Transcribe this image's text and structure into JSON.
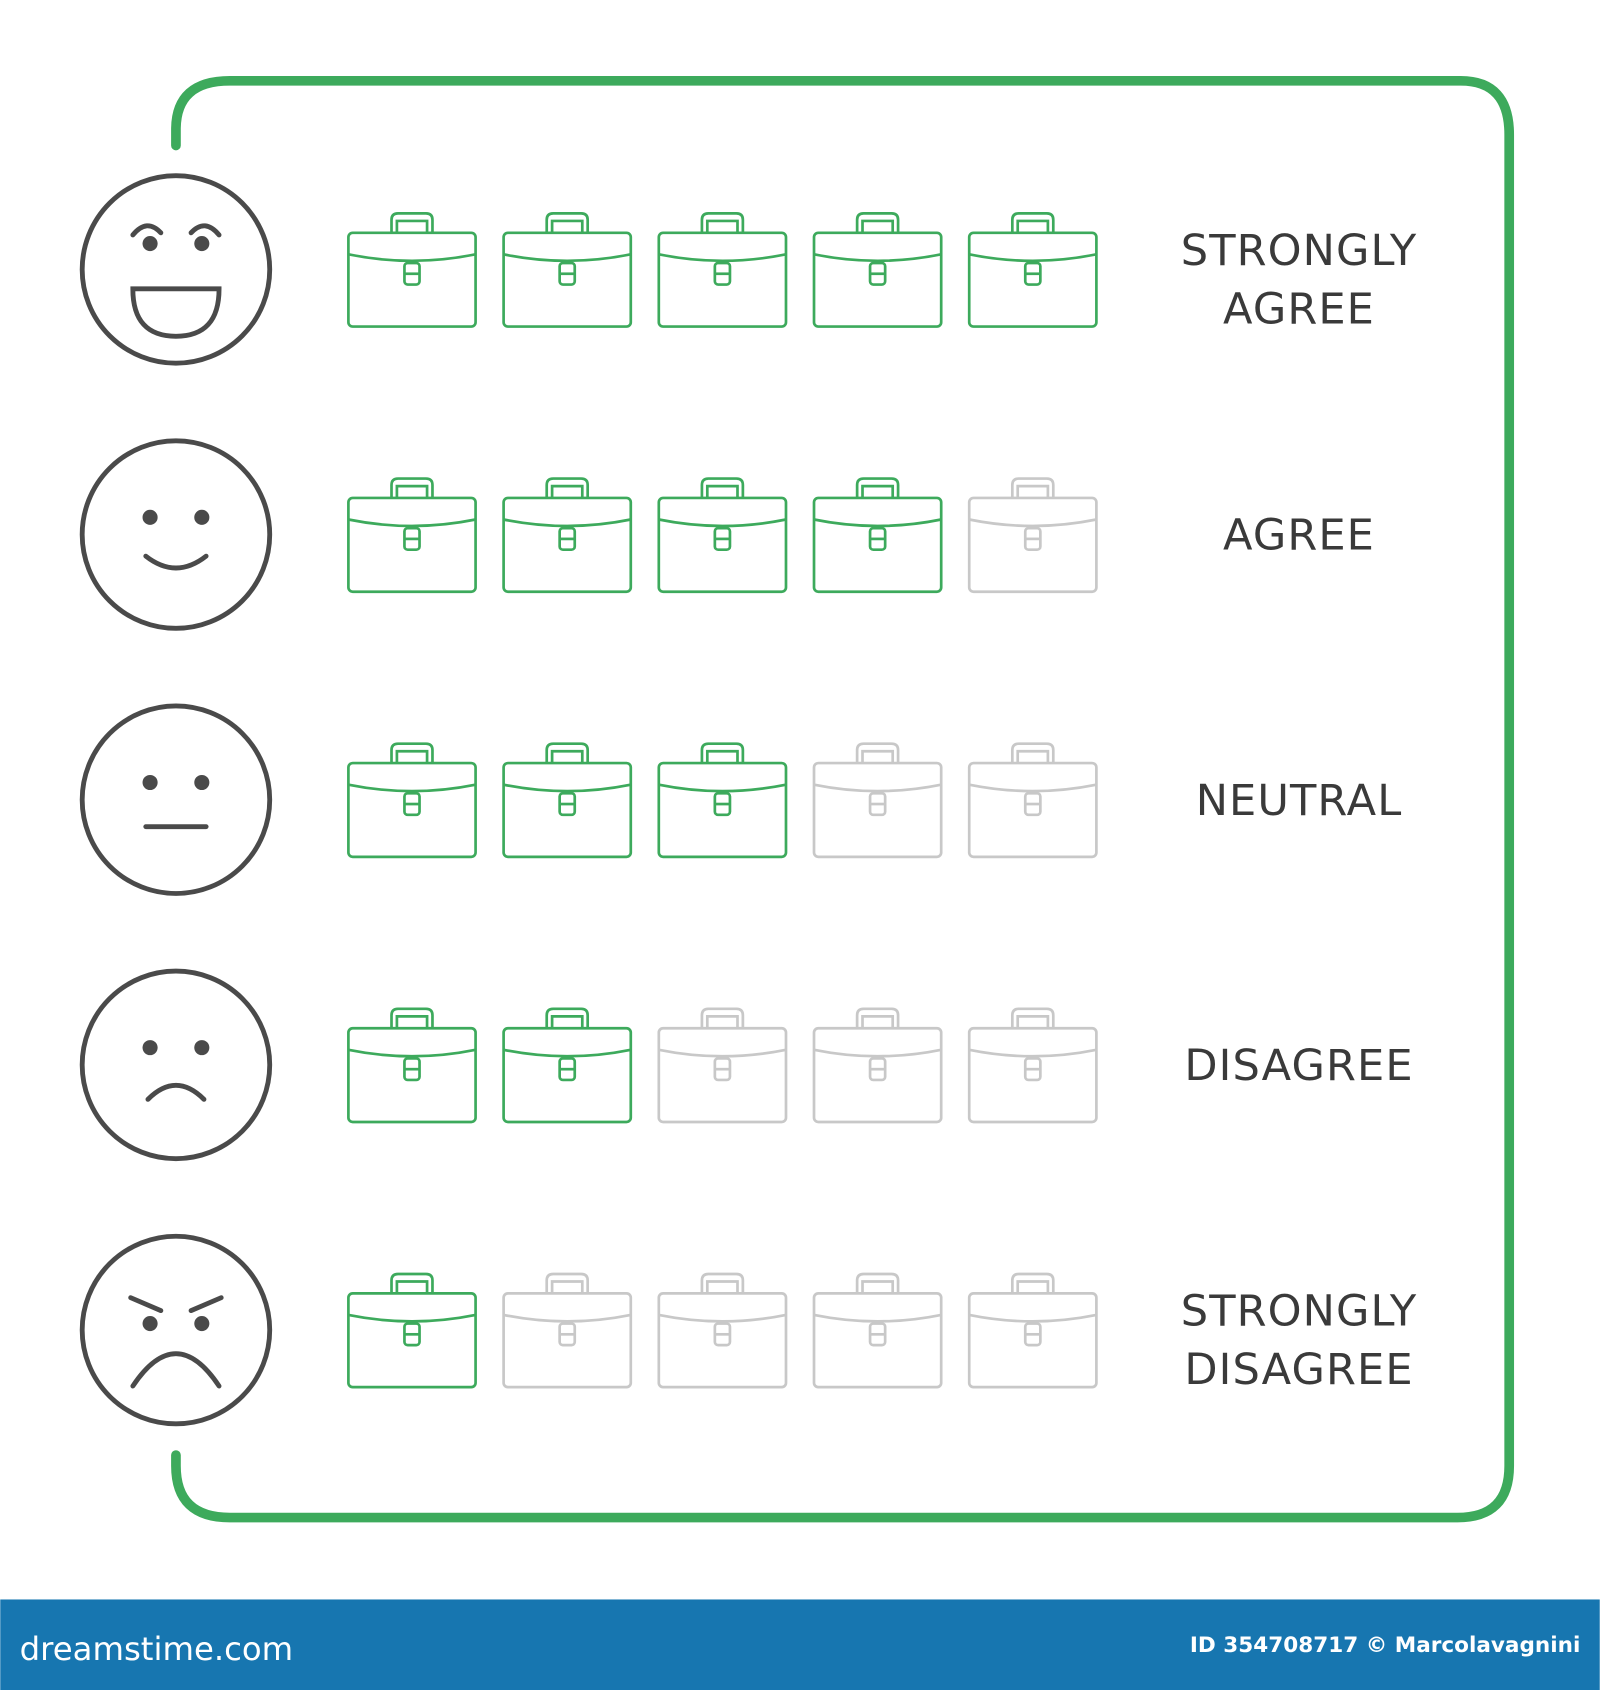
{
  "rows": [
    {
      "label": "STRONGLY AGREE",
      "rating": 5
    },
    {
      "label": "AGREE",
      "rating": 4
    },
    {
      "label": "NEUTRAL",
      "rating": 3
    },
    {
      "label": "DISAGREE",
      "rating": 2
    },
    {
      "label": "STRONGLY DISAGREE",
      "rating": 1
    }
  ],
  "max_rating": 5,
  "footer": {
    "site": "dreamstime.com",
    "credit": "ID 354708717 © Marcolavagnini"
  }
}
